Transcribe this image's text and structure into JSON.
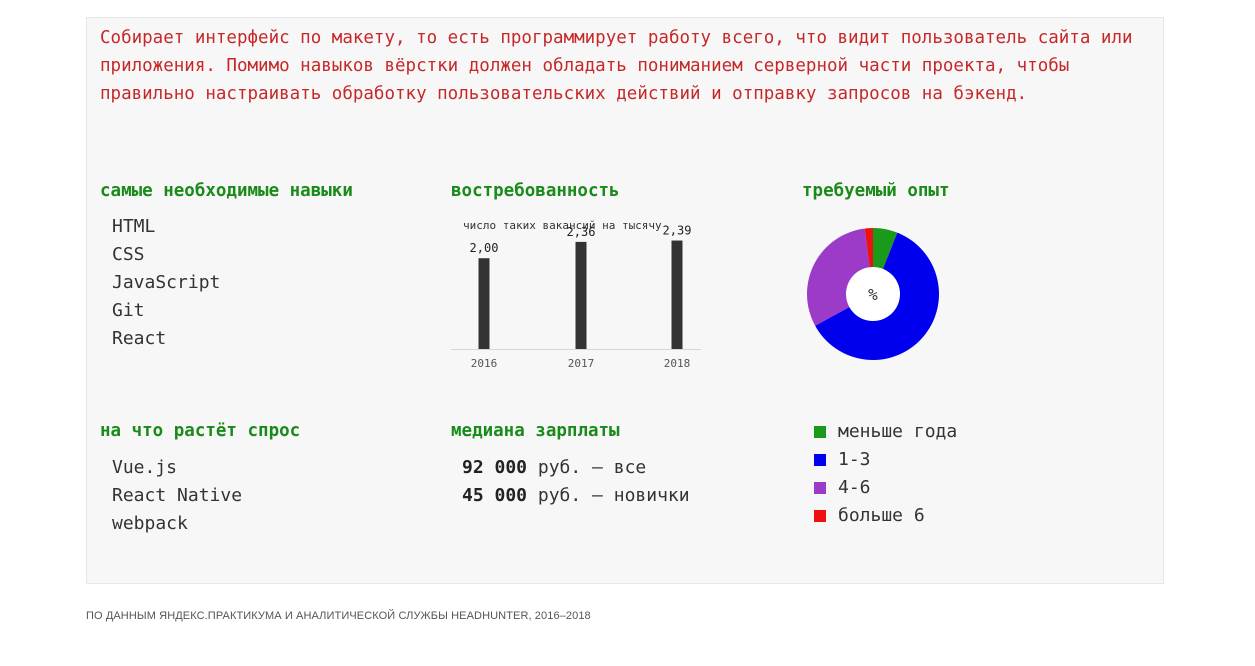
{
  "description": "Собирает интерфейс по макету, то есть программирует работу всего, что видит пользователь сайта или приложения. Помимо навыков вёрстки должен обладать пониманием серверной части проекта, чтобы правильно настраивать обработку пользовательских действий и отправку запросов на бэкенд.",
  "skills": {
    "heading": "самые необходимые навыки",
    "items": [
      "HTML",
      "CSS",
      "JavaScript",
      "Git",
      "React"
    ]
  },
  "demand": {
    "heading": "востребованность"
  },
  "experience": {
    "heading": "требуемый опыт",
    "center_label": "%"
  },
  "growing": {
    "heading": "на что растёт спрос",
    "items": [
      "Vue.js",
      "React Native",
      "webpack"
    ]
  },
  "salary": {
    "heading": "медиана зарплаты",
    "rows": [
      {
        "amount": "92 000",
        "text": " руб. — все"
      },
      {
        "amount": "45 000",
        "text": " руб. — новички"
      }
    ]
  },
  "source": "ПО ДАННЫМ ЯНДЕКС.ПРАКТИКУМА И АНАЛИТИЧЕСКОЙ СЛУЖБЫ HEADHUNTER, 2016–2018",
  "colors": {
    "bar": "#333333",
    "less_year": "#1a9a1a",
    "one_three": "#0000ee",
    "four_six": "#9b3bc8",
    "more_six": "#ee1111"
  },
  "chart_data": [
    {
      "type": "bar",
      "title": "число таких вакансий на тысячу",
      "categories": [
        "2016",
        "2017",
        "2018"
      ],
      "values": [
        2.0,
        2.36,
        2.39
      ],
      "value_labels": [
        "2,00",
        "2,36",
        "2,39"
      ],
      "ylim": [
        0,
        2.6
      ],
      "grid": false
    },
    {
      "type": "pie",
      "categories": [
        "меньше года",
        "1-3",
        "4-6",
        "больше 6"
      ],
      "values": [
        6,
        61,
        31,
        2
      ],
      "center_label": "%",
      "legend": "bottom"
    }
  ]
}
